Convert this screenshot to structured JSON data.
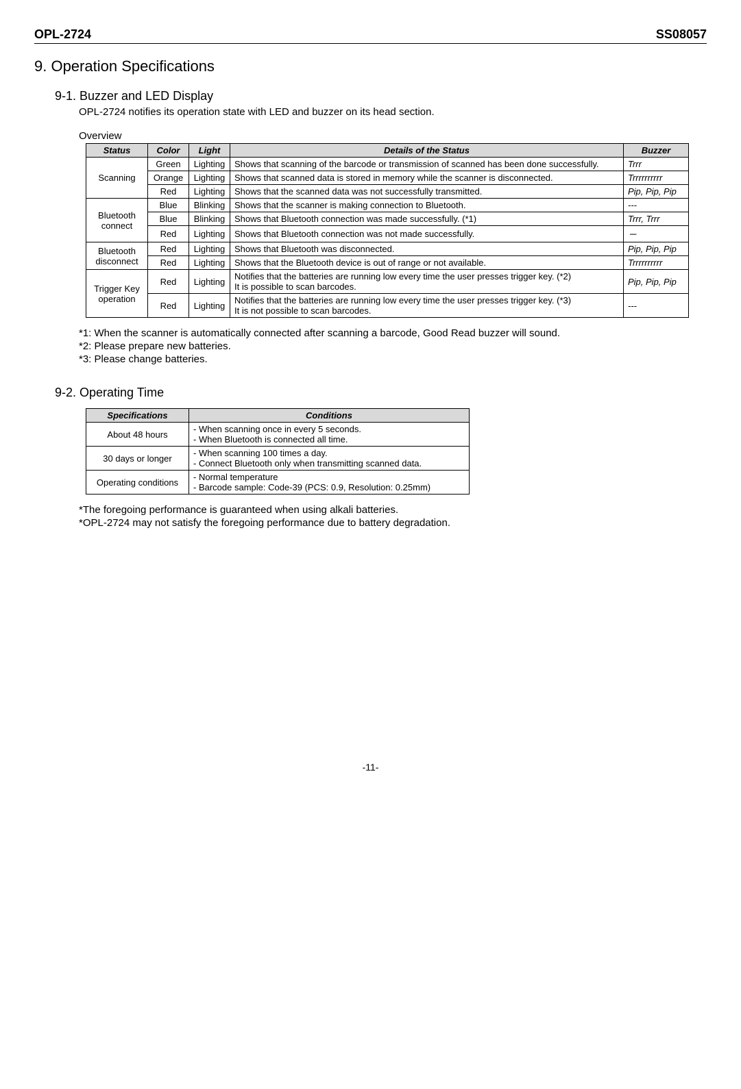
{
  "header": {
    "left": "OPL-2724",
    "right": "SS08057"
  },
  "section_title": "9. Operation Specifications",
  "sub1": {
    "title": "9-1. Buzzer and LED Display",
    "intro": "OPL-2724 notifies its operation state with LED and buzzer on its head section.",
    "overview_label": "Overview",
    "table": {
      "headers": {
        "status": "Status",
        "color": "Color",
        "light": "Light",
        "details": "Details of the Status",
        "buzzer": "Buzzer"
      },
      "groups": [
        {
          "status": "Scanning",
          "rows": [
            {
              "color": "Green",
              "light": "Lighting",
              "details": "Shows that scanning of the barcode or transmission of scanned has been done successfully.",
              "buzzer": "Trrr"
            },
            {
              "color": "Orange",
              "light": "Lighting",
              "details": "Shows that scanned data is stored in memory while the scanner is disconnected.",
              "buzzer": "Trrrrrrrrrr"
            },
            {
              "color": "Red",
              "light": "Lighting",
              "details": "Shows that the scanned data was not successfully transmitted.",
              "buzzer": "Pip, Pip, Pip"
            }
          ]
        },
        {
          "status": "Bluetooth connect",
          "rows": [
            {
              "color": "Blue",
              "light": "Blinking",
              "details": "Shows that the scanner is making connection to Bluetooth.",
              "buzzer": "---"
            },
            {
              "color": "Blue",
              "light": "Blinking",
              "details": "Shows that Bluetooth connection was made successfully. (*1)",
              "buzzer": "Trrr, Trrr"
            },
            {
              "color": "Red",
              "light": "Lighting",
              "details": "Shows that Bluetooth connection was not made successfully.",
              "buzzer": "－"
            }
          ]
        },
        {
          "status": "Bluetooth disconnect",
          "rows": [
            {
              "color": "Red",
              "light": "Lighting",
              "details": "Shows that Bluetooth was disconnected.",
              "buzzer": "Pip, Pip, Pip"
            },
            {
              "color": "Red",
              "light": "Lighting",
              "details": "Shows that the Bluetooth device is out of range or not available.",
              "buzzer": "Trrrrrrrrrr"
            }
          ]
        },
        {
          "status": "Trigger Key operation",
          "rows": [
            {
              "color": "Red",
              "light": "Lighting",
              "details": "Notifies that the batteries are running low every time the user presses trigger key. (*2)\nIt is possible to scan barcodes.",
              "buzzer": "Pip, Pip, Pip"
            },
            {
              "color": "Red",
              "light": "Lighting",
              "details": "Notifies that the batteries are running low every time the user presses trigger key. (*3)\nIt is not possible to scan barcodes.",
              "buzzer": "---"
            }
          ]
        }
      ]
    },
    "notes": [
      "*1: When the scanner is automatically connected after scanning a barcode, Good Read buzzer will sound.",
      "*2: Please prepare new batteries.",
      "*3: Please change batteries."
    ]
  },
  "sub2": {
    "title": "9-2. Operating Time",
    "table": {
      "headers": {
        "spec": "Specifications",
        "cond": "Conditions"
      },
      "rows": [
        {
          "spec": "About 48 hours",
          "cond": "- When scanning once in every 5 seconds.\n- When Bluetooth is connected all time."
        },
        {
          "spec": "30 days or longer",
          "cond": "- When scanning 100 times a day.\n- Connect Bluetooth only when transmitting scanned data."
        },
        {
          "spec": "Operating conditions",
          "cond": "- Normal temperature\n- Barcode sample: Code-39 (PCS: 0.9, Resolution: 0.25mm)"
        }
      ]
    },
    "notes": [
      "*The foregoing performance is guaranteed when using alkali batteries.",
      "*OPL-2724 may not satisfy the foregoing performance due to battery degradation."
    ]
  },
  "footer": "-11-"
}
